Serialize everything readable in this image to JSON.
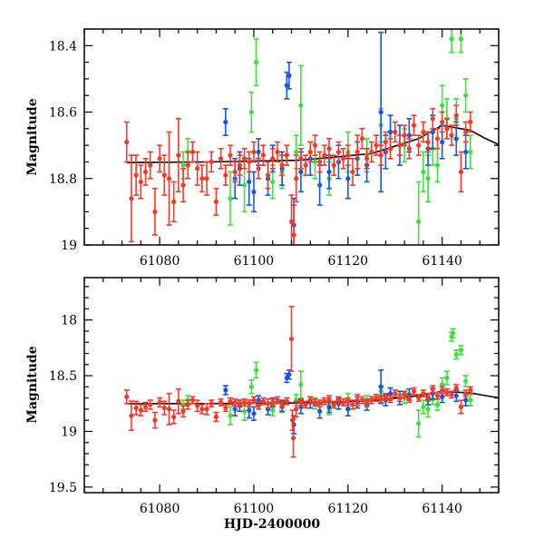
{
  "chart_data": [
    {
      "type": "scatter",
      "panel": "top",
      "title": "",
      "xlabel": "",
      "ylabel": "Magnitude",
      "xlim": [
        61064,
        61152
      ],
      "ylim": [
        19.0,
        18.35
      ],
      "y_inverted": true,
      "grid": false,
      "legend": "none",
      "xticks": [
        61080,
        61100,
        61120,
        61140
      ],
      "xtick_labels": [
        "61080",
        "61100",
        "61120",
        "61140"
      ],
      "yticks": [
        18.4,
        18.6,
        18.8,
        19
      ],
      "ytick_labels": [
        "18.4",
        "18.6",
        "18.8",
        "19"
      ],
      "model_curve": {
        "name": "model",
        "color": "#000000",
        "x": [
          61073,
          61090,
          61110,
          61125,
          61135,
          61140,
          61146,
          61149,
          61152
        ],
        "y": [
          18.752,
          18.75,
          18.745,
          18.725,
          18.68,
          18.64,
          18.655,
          18.678,
          18.698
        ]
      },
      "series": [
        {
          "name": "red",
          "color": "#f23a2a",
          "x": [
            61073,
            61074,
            61075,
            61076,
            61077,
            61078,
            61079,
            61080,
            61081,
            61082,
            61083,
            61084,
            61085,
            61086,
            61087,
            61088,
            61089,
            61090,
            61091,
            61092,
            61093,
            61094,
            61095,
            61096,
            61097,
            61098,
            61099,
            61100,
            61101,
            61102,
            61103,
            61104,
            61105,
            61106,
            61107,
            61108,
            61108.5,
            61109,
            61110,
            61111,
            61112,
            61113,
            61114,
            61115,
            61116,
            61117,
            61118,
            61119,
            61120,
            61121,
            61122,
            61123,
            61124,
            61125,
            61126,
            61127,
            61128,
            61129,
            61130,
            61131,
            61132,
            61133,
            61134,
            61135,
            61136,
            61137,
            61138,
            61139,
            61140,
            61141,
            61142,
            61143,
            61144,
            61145,
            61146
          ],
          "y": [
            18.69,
            18.86,
            18.79,
            18.81,
            18.78,
            18.76,
            18.9,
            18.74,
            18.79,
            18.8,
            18.87,
            18.73,
            18.82,
            18.76,
            18.72,
            18.77,
            18.8,
            18.8,
            18.75,
            18.87,
            18.74,
            18.79,
            18.73,
            18.78,
            18.76,
            18.74,
            18.75,
            18.72,
            18.77,
            18.73,
            18.79,
            18.74,
            18.72,
            18.76,
            18.73,
            18.93,
            18.97,
            18.8,
            18.74,
            18.76,
            18.72,
            18.7,
            18.75,
            18.73,
            18.71,
            18.76,
            18.72,
            18.74,
            18.73,
            18.78,
            18.72,
            18.68,
            18.74,
            18.72,
            18.7,
            18.73,
            18.69,
            18.71,
            18.66,
            18.7,
            18.67,
            18.71,
            18.64,
            18.7,
            18.66,
            18.69,
            18.62,
            18.68,
            18.63,
            18.65,
            18.67,
            18.61,
            18.78,
            18.66,
            18.63
          ],
          "yerr": [
            0.06,
            0.13,
            0.06,
            0.05,
            0.04,
            0.04,
            0.07,
            0.04,
            0.06,
            0.14,
            0.06,
            0.11,
            0.05,
            0.04,
            0.03,
            0.05,
            0.04,
            0.05,
            0.03,
            0.04,
            0.03,
            0.03,
            0.03,
            0.03,
            0.03,
            0.03,
            0.03,
            0.03,
            0.03,
            0.03,
            0.04,
            0.03,
            0.03,
            0.03,
            0.03,
            0.08,
            0.09,
            0.07,
            0.03,
            0.03,
            0.03,
            0.03,
            0.03,
            0.03,
            0.03,
            0.03,
            0.03,
            0.03,
            0.03,
            0.04,
            0.05,
            0.03,
            0.03,
            0.03,
            0.03,
            0.03,
            0.03,
            0.03,
            0.03,
            0.03,
            0.03,
            0.03,
            0.03,
            0.03,
            0.03,
            0.03,
            0.03,
            0.03,
            0.03,
            0.03,
            0.03,
            0.03,
            0.06,
            0.03,
            0.03
          ]
        },
        {
          "name": "blue",
          "color": "#1556e6",
          "x": [
            61094,
            61096,
            61097,
            61099,
            61100,
            61101,
            61103,
            61104,
            61106,
            61107,
            61107.5,
            61108.5,
            61110,
            61112,
            61114,
            61116,
            61118,
            61120,
            61122,
            61124,
            61127,
            61128,
            61129,
            61131,
            61133,
            61137,
            61138,
            61140,
            61143,
            61145
          ],
          "y": [
            18.63,
            18.8,
            18.77,
            18.81,
            18.84,
            18.72,
            18.8,
            18.74,
            18.77,
            18.52,
            18.49,
            18.94,
            18.78,
            18.74,
            18.82,
            18.78,
            18.75,
            18.8,
            18.74,
            18.76,
            18.6,
            18.72,
            18.66,
            18.7,
            18.67,
            18.71,
            18.66,
            18.69,
            18.68,
            18.72
          ],
          "yerr": [
            0.04,
            0.06,
            0.05,
            0.07,
            0.06,
            0.04,
            0.05,
            0.04,
            0.05,
            0.04,
            0.04,
            0.08,
            0.06,
            0.05,
            0.06,
            0.05,
            0.05,
            0.06,
            0.05,
            0.05,
            0.24,
            0.05,
            0.05,
            0.06,
            0.05,
            0.05,
            0.05,
            0.05,
            0.05,
            0.05
          ]
        },
        {
          "name": "green",
          "color": "#3ee03a",
          "x": [
            61085,
            61086,
            61095,
            61098,
            61099.5,
            61100.5,
            61104,
            61106,
            61109,
            61110,
            61113,
            61116,
            61120,
            61124,
            61127,
            61129,
            61132,
            61135,
            61136,
            61137,
            61138,
            61139,
            61140,
            61141,
            61142,
            61143,
            61144,
            61145,
            61146
          ],
          "y": [
            18.76,
            18.72,
            18.86,
            18.82,
            18.6,
            18.45,
            18.81,
            18.78,
            18.72,
            18.58,
            18.75,
            18.8,
            18.72,
            18.73,
            18.64,
            18.66,
            18.7,
            18.93,
            18.78,
            18.8,
            18.71,
            18.76,
            18.58,
            18.62,
            18.38,
            18.62,
            18.38,
            18.55,
            18.72
          ],
          "yerr": [
            0.04,
            0.04,
            0.08,
            0.08,
            0.06,
            0.07,
            0.05,
            0.05,
            0.05,
            0.12,
            0.05,
            0.05,
            0.06,
            0.05,
            0.05,
            0.05,
            0.05,
            0.12,
            0.06,
            0.07,
            0.05,
            0.05,
            0.06,
            0.06,
            0.04,
            0.06,
            0.04,
            0.05,
            0.05
          ]
        }
      ]
    },
    {
      "type": "scatter",
      "panel": "bottom",
      "title": "",
      "xlabel": "HJD-2400000",
      "ylabel": "Magnitude",
      "xlim": [
        61064,
        61152
      ],
      "ylim": [
        19.55,
        17.62
      ],
      "y_inverted": true,
      "grid": false,
      "legend": "none",
      "xticks": [
        61080,
        61100,
        61120,
        61140
      ],
      "xtick_labels": [
        "61080",
        "61100",
        "61120",
        "61140"
      ],
      "yticks": [
        18,
        18.5,
        19,
        19.5
      ],
      "ytick_labels": [
        "18",
        "18.5",
        "19",
        "19.5"
      ],
      "model_curve": {
        "name": "model",
        "color": "#000000",
        "x": [
          61073,
          61090,
          61110,
          61125,
          61135,
          61140,
          61146,
          61149,
          61152
        ],
        "y": [
          18.752,
          18.75,
          18.745,
          18.725,
          18.68,
          18.64,
          18.655,
          18.678,
          18.698
        ]
      },
      "series": [
        {
          "name": "red",
          "color": "#f23a2a",
          "x": [
            61073,
            61074,
            61075,
            61076,
            61077,
            61078,
            61079,
            61080,
            61081,
            61082,
            61083,
            61084,
            61085,
            61086,
            61087,
            61088,
            61089,
            61090,
            61091,
            61092,
            61093,
            61094,
            61095,
            61096,
            61097,
            61098,
            61099,
            61100,
            61101,
            61102,
            61103,
            61104,
            61105,
            61106,
            61107,
            61108,
            61108.2,
            61108.4,
            61109,
            61110,
            61111,
            61112,
            61113,
            61114,
            61115,
            61116,
            61117,
            61118,
            61119,
            61120,
            61121,
            61122,
            61123,
            61124,
            61125,
            61126,
            61127,
            61128,
            61129,
            61130,
            61131,
            61132,
            61133,
            61134,
            61135,
            61136,
            61137,
            61138,
            61139,
            61140,
            61141,
            61142,
            61143,
            61144,
            61145,
            61146
          ],
          "y": [
            18.69,
            18.86,
            18.79,
            18.81,
            18.78,
            18.76,
            18.9,
            18.74,
            18.79,
            18.8,
            18.87,
            18.73,
            18.82,
            18.76,
            18.72,
            18.77,
            18.8,
            18.8,
            18.75,
            18.87,
            18.74,
            18.79,
            18.73,
            18.74,
            18.75,
            18.74,
            18.75,
            18.72,
            18.77,
            18.73,
            18.75,
            18.74,
            18.72,
            18.76,
            18.73,
            18.17,
            18.9,
            19.06,
            18.8,
            18.74,
            18.76,
            18.72,
            18.74,
            18.75,
            18.73,
            18.71,
            18.76,
            18.72,
            18.74,
            18.73,
            18.76,
            18.72,
            18.72,
            18.74,
            18.72,
            18.7,
            18.71,
            18.69,
            18.71,
            18.66,
            18.7,
            18.67,
            18.71,
            18.64,
            18.7,
            18.66,
            18.69,
            18.62,
            18.68,
            18.63,
            18.65,
            18.67,
            18.61,
            18.78,
            18.66,
            18.63
          ],
          "yerr": [
            0.06,
            0.13,
            0.06,
            0.05,
            0.04,
            0.04,
            0.07,
            0.04,
            0.06,
            0.14,
            0.06,
            0.11,
            0.05,
            0.04,
            0.03,
            0.05,
            0.04,
            0.05,
            0.03,
            0.04,
            0.03,
            0.03,
            0.03,
            0.03,
            0.03,
            0.03,
            0.03,
            0.03,
            0.03,
            0.03,
            0.04,
            0.03,
            0.03,
            0.03,
            0.03,
            0.29,
            0.09,
            0.17,
            0.07,
            0.03,
            0.03,
            0.03,
            0.03,
            0.03,
            0.03,
            0.03,
            0.03,
            0.03,
            0.03,
            0.03,
            0.04,
            0.05,
            0.03,
            0.03,
            0.03,
            0.03,
            0.03,
            0.03,
            0.03,
            0.03,
            0.03,
            0.03,
            0.03,
            0.03,
            0.03,
            0.03,
            0.03,
            0.03,
            0.03,
            0.03,
            0.03,
            0.03,
            0.03,
            0.06,
            0.03,
            0.03
          ]
        },
        {
          "name": "blue",
          "color": "#1556e6",
          "x": [
            61094,
            61096,
            61097,
            61099,
            61100,
            61101,
            61103,
            61104,
            61106,
            61107,
            61107.5,
            61108.5,
            61110,
            61112,
            61114,
            61116,
            61118,
            61120,
            61122,
            61124,
            61127,
            61128,
            61129,
            61131,
            61133,
            61137,
            61138,
            61140,
            61143,
            61145
          ],
          "y": [
            18.63,
            18.8,
            18.77,
            18.81,
            18.84,
            18.72,
            18.8,
            18.74,
            18.77,
            18.52,
            18.49,
            18.94,
            18.78,
            18.74,
            18.82,
            18.78,
            18.75,
            18.8,
            18.74,
            18.76,
            18.6,
            18.72,
            18.66,
            18.7,
            18.67,
            18.71,
            18.66,
            18.69,
            18.68,
            18.72
          ],
          "yerr": [
            0.04,
            0.06,
            0.05,
            0.07,
            0.06,
            0.04,
            0.05,
            0.04,
            0.05,
            0.04,
            0.04,
            0.08,
            0.06,
            0.05,
            0.06,
            0.05,
            0.05,
            0.06,
            0.05,
            0.05,
            0.15,
            0.05,
            0.05,
            0.06,
            0.05,
            0.05,
            0.05,
            0.05,
            0.05,
            0.05
          ]
        },
        {
          "name": "green",
          "color": "#3ee03a",
          "x": [
            61085,
            61086,
            61095,
            61098,
            61099.5,
            61100.5,
            61104,
            61106,
            61109,
            61110,
            61113,
            61116,
            61120,
            61124,
            61127,
            61129,
            61132,
            61135,
            61136,
            61137,
            61138,
            61139,
            61140,
            61141,
            61142,
            61142.3,
            61143,
            61144,
            61145,
            61146
          ],
          "y": [
            18.76,
            18.72,
            18.86,
            18.82,
            18.6,
            18.45,
            18.81,
            18.78,
            18.72,
            18.58,
            18.75,
            18.8,
            18.72,
            18.73,
            18.64,
            18.66,
            18.7,
            18.93,
            18.78,
            18.8,
            18.71,
            18.76,
            18.58,
            18.52,
            18.15,
            18.12,
            18.31,
            18.27,
            18.55,
            18.72
          ],
          "yerr": [
            0.04,
            0.04,
            0.08,
            0.08,
            0.06,
            0.07,
            0.05,
            0.05,
            0.05,
            0.12,
            0.05,
            0.05,
            0.06,
            0.05,
            0.05,
            0.05,
            0.05,
            0.12,
            0.06,
            0.07,
            0.05,
            0.05,
            0.06,
            0.06,
            0.04,
            0.04,
            0.04,
            0.04,
            0.05,
            0.05
          ]
        }
      ]
    }
  ]
}
